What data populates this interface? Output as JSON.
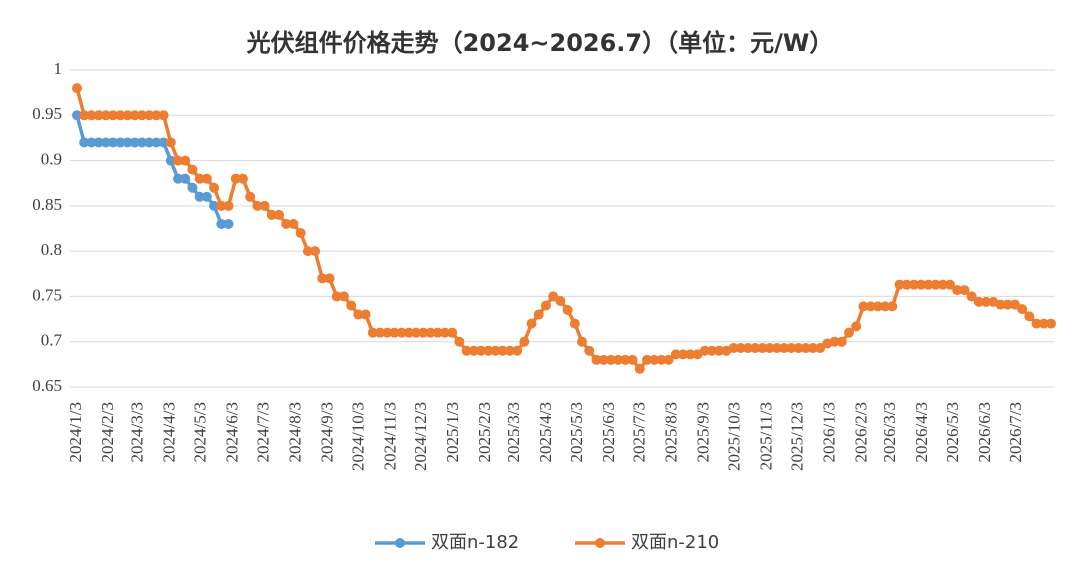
{
  "chart_data": {
    "type": "line",
    "title": "光伏组件价格走势（2024~2026.7）（单位：元/W）",
    "x": [
      "2024/1/3",
      "2024/1/10",
      "2024/1/17",
      "2024/1/24",
      "2024/1/31",
      "2024/2/7",
      "2024/2/14",
      "2024/2/21",
      "2024/2/28",
      "2024/3/6",
      "2024/3/13",
      "2024/3/20",
      "2024/3/27",
      "2024/4/3",
      "2024/4/10",
      "2024/4/17",
      "2024/4/24",
      "2024/5/1",
      "2024/5/8",
      "2024/5/15",
      "2024/5/22",
      "2024/5/29",
      "2024/6/5",
      "2024/6/12",
      "2024/6/19",
      "2024/6/26",
      "2024/7/3",
      "2024/7/10",
      "2024/7/17",
      "2024/7/24",
      "2024/7/31",
      "2024/8/7",
      "2024/8/14",
      "2024/8/21",
      "2024/8/28",
      "2024/9/4",
      "2024/9/11",
      "2024/9/18",
      "2024/9/25",
      "2024/10/2",
      "2024/10/9",
      "2024/10/16",
      "2024/10/23",
      "2024/10/30",
      "2024/11/6",
      "2024/11/13",
      "2024/11/20",
      "2024/11/27",
      "2024/12/4",
      "2024/12/11",
      "2024/12/18",
      "2024/12/25",
      "2025/1/1",
      "2025/1/8",
      "2025/1/15",
      "2025/1/22",
      "2025/1/29",
      "2025/2/5",
      "2025/2/12",
      "2025/2/19",
      "2025/2/26",
      "2025/3/5",
      "2025/3/12",
      "2025/3/19",
      "2025/3/26",
      "2025/4/2",
      "2025/4/9",
      "2025/4/16",
      "2025/4/23",
      "2025/4/30",
      "2025/5/7",
      "2025/5/14",
      "2025/5/21",
      "2025/5/28",
      "2025/6/4",
      "2025/6/11",
      "2025/6/18",
      "2025/6/25",
      "2025/7/2",
      "2025/7/9",
      "2025/7/16",
      "2025/7/23",
      "2025/7/30",
      "2025/8/6",
      "2025/8/13",
      "2025/8/20",
      "2025/8/27",
      "2025/9/3",
      "2025/9/10",
      "2025/9/17",
      "2025/9/24",
      "2025/10/1",
      "2025/10/8",
      "2025/10/15",
      "2025/10/22",
      "2025/10/29",
      "2025/11/5",
      "2025/11/12",
      "2025/11/19",
      "2025/11/26",
      "2025/12/3",
      "2025/12/10",
      "2025/12/17",
      "2025/12/24",
      "2025/12/31",
      "2026/1/7",
      "2026/1/14",
      "2026/1/21",
      "2026/1/28",
      "2026/2/4",
      "2026/2/11",
      "2026/2/18",
      "2026/2/25",
      "2026/3/4",
      "2026/3/11",
      "2026/3/18",
      "2026/3/25",
      "2026/4/1",
      "2026/4/8",
      "2026/4/15",
      "2026/4/22",
      "2026/4/29",
      "2026/5/6",
      "2026/5/13",
      "2026/5/20",
      "2026/5/27",
      "2026/6/3",
      "2026/6/10",
      "2026/6/17",
      "2026/6/24",
      "2026/7/1",
      "2026/7/8",
      "2026/7/15",
      "2026/7/22",
      "2026/7/29",
      "2026/8/5"
    ],
    "series": [
      {
        "name": "双面n-182",
        "color": "#5b9bd5",
        "values": [
          0.95,
          0.92,
          0.92,
          0.92,
          0.92,
          0.92,
          0.92,
          0.92,
          0.92,
          0.92,
          0.92,
          0.92,
          0.92,
          0.9,
          0.88,
          0.88,
          0.87,
          0.86,
          0.86,
          0.85,
          0.83,
          0.83,
          null,
          null,
          null,
          null,
          null,
          null,
          null,
          null,
          null,
          null,
          null,
          null,
          null,
          null,
          null,
          null,
          null,
          null,
          null,
          null,
          null,
          null,
          null,
          null,
          null,
          null,
          null,
          null,
          null,
          null,
          null,
          null,
          null,
          null,
          null,
          null,
          null,
          null,
          null,
          null,
          null,
          null,
          null,
          null,
          null,
          null,
          null,
          null,
          null,
          null,
          null,
          null,
          null,
          null,
          null,
          null,
          null,
          null,
          null,
          null,
          null,
          null,
          null,
          null,
          null,
          null,
          null,
          null,
          null,
          null,
          null,
          null,
          null,
          null,
          null,
          null,
          null,
          null,
          null,
          null,
          null,
          null,
          null,
          null,
          null,
          null,
          null,
          null,
          null,
          null,
          null,
          null,
          null,
          null,
          null,
          null,
          null,
          null,
          null,
          null,
          null,
          null,
          null,
          null,
          null,
          null,
          null,
          null,
          null,
          null,
          null,
          null,
          null,
          null
        ]
      },
      {
        "name": "双面n-210",
        "color": "#ed7d31",
        "values": [
          0.98,
          0.95,
          0.95,
          0.95,
          0.95,
          0.95,
          0.95,
          0.95,
          0.95,
          0.95,
          0.95,
          0.95,
          0.95,
          0.92,
          0.9,
          0.9,
          0.89,
          0.88,
          0.88,
          0.87,
          0.85,
          0.85,
          0.88,
          0.88,
          0.86,
          0.85,
          0.85,
          0.84,
          0.84,
          0.83,
          0.83,
          0.82,
          0.8,
          0.8,
          0.77,
          0.77,
          0.75,
          0.75,
          0.74,
          0.73,
          0.73,
          0.71,
          0.71,
          0.71,
          0.71,
          0.71,
          0.71,
          0.71,
          0.71,
          0.71,
          0.71,
          0.71,
          0.71,
          0.7,
          0.69,
          0.69,
          0.69,
          0.69,
          0.69,
          0.69,
          0.69,
          0.69,
          0.7,
          0.72,
          0.73,
          0.74,
          0.75,
          0.745,
          0.735,
          0.72,
          0.7,
          0.69,
          0.68,
          0.68,
          0.68,
          0.68,
          0.68,
          0.68,
          0.67,
          0.68,
          0.68,
          0.68,
          0.68,
          0.686,
          0.686,
          0.686,
          0.686,
          0.69,
          0.69,
          0.69,
          0.69,
          0.693,
          0.693,
          0.693,
          0.693,
          0.693,
          0.693,
          0.693,
          0.693,
          0.693,
          0.693,
          0.693,
          0.693,
          0.693,
          0.698,
          0.7,
          0.7,
          0.71,
          0.717,
          0.739,
          0.739,
          0.739,
          0.739,
          0.739,
          0.763,
          0.763,
          0.763,
          0.763,
          0.763,
          0.763,
          0.763,
          0.763,
          0.757,
          0.757,
          0.75,
          0.744,
          0.744,
          0.744,
          0.741,
          0.741,
          0.741,
          0.736,
          0.728,
          0.72,
          0.72,
          0.72
        ]
      }
    ],
    "xticks": [
      "2024/1/3",
      "2024/2/3",
      "2024/3/3",
      "2024/4/3",
      "2024/5/3",
      "2024/6/3",
      "2024/7/3",
      "2024/8/3",
      "2024/9/3",
      "2024/10/3",
      "2024/11/3",
      "2024/12/3",
      "2025/1/3",
      "2025/2/3",
      "2025/3/3",
      "2025/4/3",
      "2025/5/3",
      "2025/6/3",
      "2025/7/3",
      "2025/8/3",
      "2025/9/3",
      "2025/10/3",
      "2025/11/3",
      "2025/12/3",
      "2026/1/3",
      "2026/2/3",
      "2026/3/3",
      "2026/4/3",
      "2026/5/3",
      "2026/6/3",
      "2026/7/3"
    ],
    "ylim": [
      0.65,
      1
    ],
    "yticks": [
      0.65,
      0.7,
      0.75,
      0.8,
      0.85,
      0.9,
      0.95,
      1
    ],
    "grid": true,
    "legend": "bottom"
  }
}
